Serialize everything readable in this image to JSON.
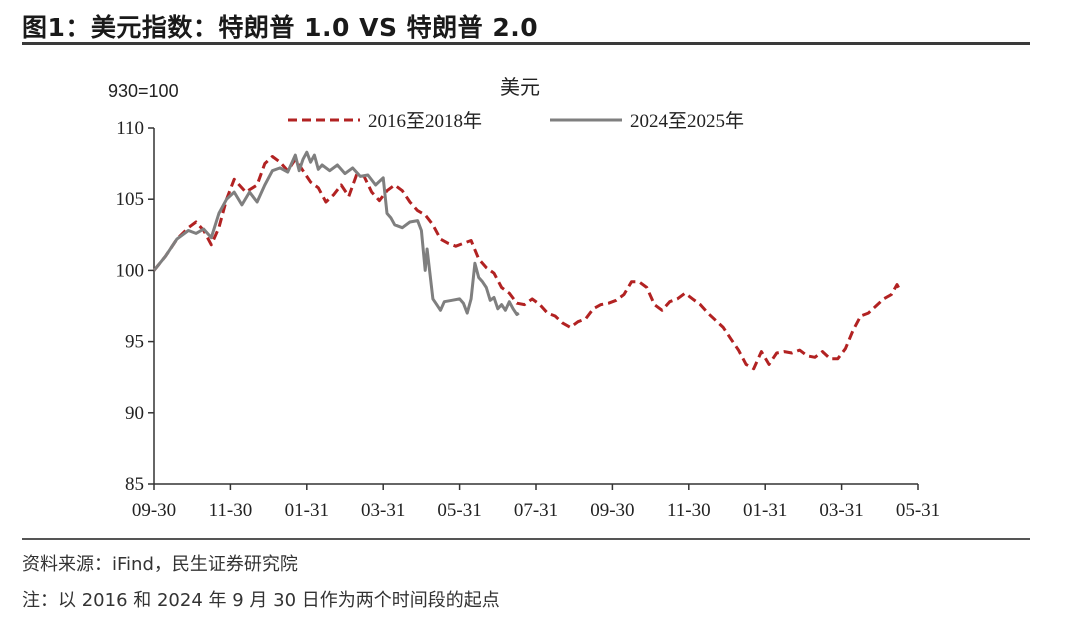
{
  "figure": {
    "title": "图1：美元指数：特朗普 1.0 VS 特朗普 2.0",
    "source": "资料来源：iFind，民生证券研究院",
    "note": "注：以 2016 和 2024 年 9 月 30 日作为两个时间段的起点"
  },
  "chart_data": {
    "type": "line",
    "title": "美元",
    "ylabel": "930=100",
    "ylim": [
      85,
      110
    ],
    "yticks": [
      85,
      90,
      95,
      100,
      105,
      110
    ],
    "xticks": [
      "09-30",
      "11-30",
      "01-31",
      "03-31",
      "05-31",
      "07-31",
      "09-30",
      "11-30",
      "01-31",
      "03-31",
      "05-31"
    ],
    "xlim_months": [
      0,
      20
    ],
    "grid": false,
    "legend": "top",
    "series": [
      {
        "name": "2016至2018年",
        "color": "#b22222",
        "style": "dashed",
        "points": [
          [
            0.0,
            100.0
          ],
          [
            0.3,
            101.0
          ],
          [
            0.6,
            102.2
          ],
          [
            0.9,
            103.0
          ],
          [
            1.1,
            103.4
          ],
          [
            1.3,
            102.8
          ],
          [
            1.5,
            101.8
          ],
          [
            1.7,
            103.0
          ],
          [
            1.9,
            105.0
          ],
          [
            2.1,
            106.4
          ],
          [
            2.4,
            105.5
          ],
          [
            2.7,
            106.0
          ],
          [
            2.9,
            107.5
          ],
          [
            3.1,
            108.0
          ],
          [
            3.3,
            107.6
          ],
          [
            3.5,
            107.0
          ],
          [
            3.7,
            107.8
          ],
          [
            3.9,
            107.0
          ],
          [
            4.1,
            106.2
          ],
          [
            4.3,
            105.8
          ],
          [
            4.5,
            104.8
          ],
          [
            4.7,
            105.3
          ],
          [
            4.9,
            106.0
          ],
          [
            5.1,
            105.2
          ],
          [
            5.3,
            106.7
          ],
          [
            5.5,
            106.6
          ],
          [
            5.7,
            105.5
          ],
          [
            5.9,
            104.9
          ],
          [
            6.1,
            105.6
          ],
          [
            6.3,
            106.0
          ],
          [
            6.5,
            105.6
          ],
          [
            6.7,
            104.8
          ],
          [
            6.9,
            104.2
          ],
          [
            7.1,
            103.9
          ],
          [
            7.3,
            103.2
          ],
          [
            7.5,
            102.2
          ],
          [
            7.7,
            101.9
          ],
          [
            7.9,
            101.7
          ],
          [
            8.1,
            101.9
          ],
          [
            8.3,
            102.1
          ],
          [
            8.5,
            100.8
          ],
          [
            8.7,
            100.2
          ],
          [
            8.9,
            99.8
          ],
          [
            9.1,
            98.8
          ],
          [
            9.3,
            98.4
          ],
          [
            9.5,
            97.7
          ],
          [
            9.7,
            97.6
          ],
          [
            9.9,
            98.0
          ],
          [
            10.1,
            97.6
          ],
          [
            10.3,
            97.0
          ],
          [
            10.5,
            96.8
          ],
          [
            10.7,
            96.3
          ],
          [
            10.9,
            96.0
          ],
          [
            11.1,
            96.4
          ],
          [
            11.3,
            96.6
          ],
          [
            11.5,
            97.3
          ],
          [
            11.7,
            97.6
          ],
          [
            11.9,
            97.7
          ],
          [
            12.1,
            97.9
          ],
          [
            12.3,
            98.3
          ],
          [
            12.5,
            99.2
          ],
          [
            12.7,
            99.2
          ],
          [
            12.9,
            98.8
          ],
          [
            13.1,
            97.6
          ],
          [
            13.3,
            97.2
          ],
          [
            13.5,
            97.8
          ],
          [
            13.7,
            98.0
          ],
          [
            13.9,
            98.4
          ],
          [
            14.1,
            98.0
          ],
          [
            14.3,
            97.6
          ],
          [
            14.5,
            97.0
          ],
          [
            14.7,
            96.5
          ],
          [
            14.9,
            96.0
          ],
          [
            15.1,
            95.2
          ],
          [
            15.3,
            94.4
          ],
          [
            15.5,
            93.4
          ],
          [
            15.7,
            93.1
          ],
          [
            15.9,
            94.3
          ],
          [
            16.1,
            93.4
          ],
          [
            16.3,
            94.2
          ],
          [
            16.5,
            94.3
          ],
          [
            16.7,
            94.2
          ],
          [
            16.9,
            94.4
          ],
          [
            17.1,
            94.0
          ],
          [
            17.3,
            93.9
          ],
          [
            17.5,
            94.3
          ],
          [
            17.7,
            93.8
          ],
          [
            17.9,
            93.8
          ],
          [
            18.1,
            94.5
          ],
          [
            18.3,
            95.8
          ],
          [
            18.5,
            96.8
          ],
          [
            18.7,
            97.0
          ],
          [
            18.9,
            97.5
          ],
          [
            19.1,
            98.0
          ],
          [
            19.3,
            98.3
          ],
          [
            19.45,
            99.0
          ],
          [
            19.55,
            98.5
          ]
        ]
      },
      {
        "name": "2024至2025年",
        "color": "#7f7f7f",
        "style": "solid",
        "points": [
          [
            0.0,
            100.0
          ],
          [
            0.3,
            101.0
          ],
          [
            0.6,
            102.2
          ],
          [
            0.9,
            102.8
          ],
          [
            1.1,
            102.6
          ],
          [
            1.3,
            102.9
          ],
          [
            1.5,
            102.3
          ],
          [
            1.7,
            104.0
          ],
          [
            1.9,
            105.0
          ],
          [
            2.1,
            105.5
          ],
          [
            2.3,
            104.6
          ],
          [
            2.5,
            105.5
          ],
          [
            2.7,
            104.8
          ],
          [
            2.9,
            106.0
          ],
          [
            3.1,
            107.0
          ],
          [
            3.3,
            107.2
          ],
          [
            3.5,
            106.9
          ],
          [
            3.7,
            108.1
          ],
          [
            3.8,
            107.0
          ],
          [
            3.9,
            107.8
          ],
          [
            4.0,
            108.3
          ],
          [
            4.1,
            107.6
          ],
          [
            4.2,
            108.1
          ],
          [
            4.3,
            107.1
          ],
          [
            4.4,
            107.4
          ],
          [
            4.6,
            107.0
          ],
          [
            4.8,
            107.4
          ],
          [
            5.0,
            106.8
          ],
          [
            5.2,
            107.2
          ],
          [
            5.4,
            106.6
          ],
          [
            5.6,
            106.7
          ],
          [
            5.8,
            106.0
          ],
          [
            6.0,
            106.5
          ],
          [
            6.1,
            104.0
          ],
          [
            6.2,
            103.7
          ],
          [
            6.3,
            103.2
          ],
          [
            6.5,
            103.0
          ],
          [
            6.7,
            103.4
          ],
          [
            6.9,
            103.5
          ],
          [
            7.0,
            102.8
          ],
          [
            7.1,
            100.0
          ],
          [
            7.15,
            101.5
          ],
          [
            7.3,
            98.0
          ],
          [
            7.4,
            97.6
          ],
          [
            7.5,
            97.2
          ],
          [
            7.6,
            97.8
          ],
          [
            7.8,
            97.9
          ],
          [
            8.0,
            98.0
          ],
          [
            8.1,
            97.7
          ],
          [
            8.2,
            97.0
          ],
          [
            8.3,
            98.0
          ],
          [
            8.4,
            100.5
          ],
          [
            8.5,
            99.5
          ],
          [
            8.6,
            99.2
          ],
          [
            8.7,
            98.8
          ],
          [
            8.8,
            97.9
          ],
          [
            8.9,
            98.1
          ],
          [
            9.0,
            97.3
          ],
          [
            9.1,
            97.6
          ],
          [
            9.2,
            97.2
          ],
          [
            9.3,
            97.8
          ],
          [
            9.4,
            97.3
          ],
          [
            9.5,
            96.9
          ],
          [
            9.55,
            97.0
          ]
        ]
      }
    ]
  }
}
